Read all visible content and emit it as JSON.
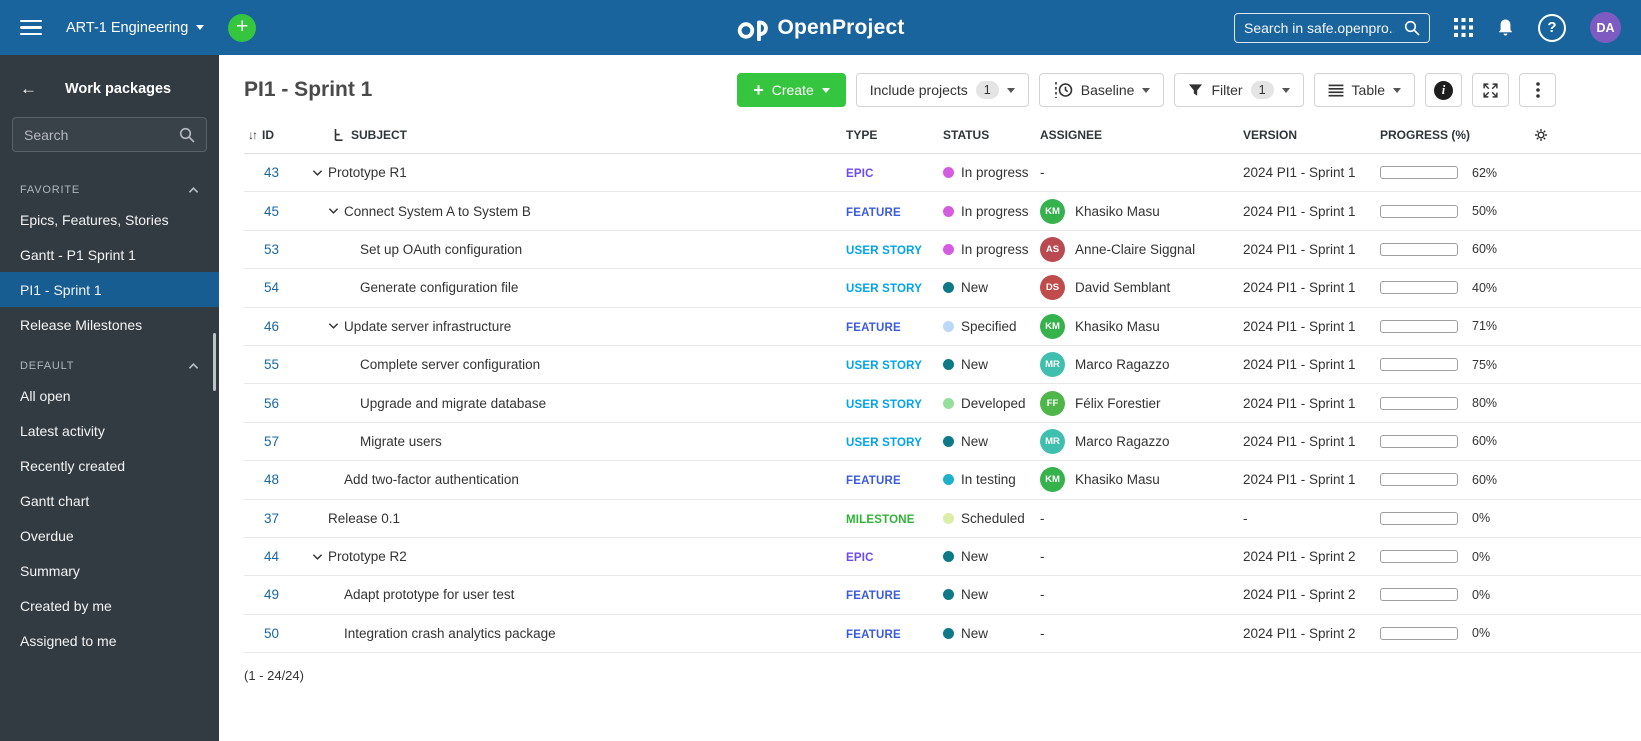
{
  "topbar": {
    "project_name": "ART-1 Engineering",
    "logo_text": "OpenProject",
    "search_placeholder": "Search in safe.openpro...",
    "avatar_initials": "DA"
  },
  "sidebar": {
    "title": "Work packages",
    "search_placeholder": "Search",
    "sections": [
      {
        "label": "FAVORITE",
        "items": [
          {
            "label": "Epics, Features, Stories",
            "selected": false
          },
          {
            "label": "Gantt - P1 Sprint 1",
            "selected": false
          },
          {
            "label": "PI1 - Sprint 1",
            "selected": true
          },
          {
            "label": "Release Milestones",
            "selected": false
          }
        ]
      },
      {
        "label": "DEFAULT",
        "items": [
          {
            "label": "All open",
            "selected": false
          },
          {
            "label": "Latest activity",
            "selected": false
          },
          {
            "label": "Recently created",
            "selected": false
          },
          {
            "label": "Gantt chart",
            "selected": false
          },
          {
            "label": "Overdue",
            "selected": false
          },
          {
            "label": "Summary",
            "selected": false
          },
          {
            "label": "Created by me",
            "selected": false
          },
          {
            "label": "Assigned to me",
            "selected": false
          }
        ]
      }
    ]
  },
  "toolbar": {
    "page_title": "PI1 - Sprint 1",
    "create_label": "Create",
    "include_projects_label": "Include projects",
    "include_projects_count": "1",
    "baseline_label": "Baseline",
    "filter_label": "Filter",
    "filter_count": "1",
    "table_label": "Table"
  },
  "table": {
    "columns": {
      "id": "ID",
      "subject": "SUBJECT",
      "type": "TYPE",
      "status": "STATUS",
      "assignee": "ASSIGNEE",
      "version": "VERSION",
      "progress": "PROGRESS (%)"
    },
    "footer": "(1 - 24/24)",
    "rows": [
      {
        "id": "43",
        "level": 0,
        "expandable": true,
        "subject": "Prototype R1",
        "type": "EPIC",
        "type_color": "#6C49F2",
        "status": "In progress",
        "status_color": "#D55CE0",
        "assignee": null,
        "version": "2024 PI1 - Sprint 1",
        "progress": 62
      },
      {
        "id": "45",
        "level": 1,
        "expandable": true,
        "subject": "Connect System A to System B",
        "type": "FEATURE",
        "type_color": "#3B5BDB",
        "status": "In progress",
        "status_color": "#D55CE0",
        "assignee": {
          "initials": "KM",
          "name": "Khasiko Masu",
          "color": "#35B24C"
        },
        "version": "2024 PI1 - Sprint 1",
        "progress": 50
      },
      {
        "id": "53",
        "level": 2,
        "expandable": false,
        "subject": "Set up OAuth configuration",
        "type": "USER STORY",
        "type_color": "#00A3EE",
        "status": "In progress",
        "status_color": "#D55CE0",
        "assignee": {
          "initials": "AS",
          "name": "Anne-Claire Siggnal",
          "color": "#BA4A52"
        },
        "version": "2024 PI1 - Sprint 1",
        "progress": 60
      },
      {
        "id": "54",
        "level": 2,
        "expandable": false,
        "subject": "Generate configuration file",
        "type": "USER STORY",
        "type_color": "#00A3EE",
        "status": "New",
        "status_color": "#0E7987",
        "assignee": {
          "initials": "DS",
          "name": "David Semblant",
          "color": "#BF4B4B"
        },
        "version": "2024 PI1 - Sprint 1",
        "progress": 40
      },
      {
        "id": "46",
        "level": 1,
        "expandable": true,
        "subject": "Update server infrastructure",
        "type": "FEATURE",
        "type_color": "#3B5BDB",
        "status": "Specified",
        "status_color": "#BBD9F7",
        "assignee": {
          "initials": "KM",
          "name": "Khasiko Masu",
          "color": "#35B24C"
        },
        "version": "2024 PI1 - Sprint 1",
        "progress": 71
      },
      {
        "id": "55",
        "level": 2,
        "expandable": false,
        "subject": "Complete server configuration",
        "type": "USER STORY",
        "type_color": "#00A3EE",
        "status": "New",
        "status_color": "#0E7987",
        "assignee": {
          "initials": "MR",
          "name": "Marco Ragazzo",
          "color": "#41BFAE"
        },
        "version": "2024 PI1 - Sprint 1",
        "progress": 75
      },
      {
        "id": "56",
        "level": 2,
        "expandable": false,
        "subject": "Upgrade and migrate database",
        "type": "USER STORY",
        "type_color": "#00A3EE",
        "status": "Developed",
        "status_color": "#95DF9D",
        "assignee": {
          "initials": "FF",
          "name": "Félix Forestier",
          "color": "#4FB64A"
        },
        "version": "2024 PI1 - Sprint 1",
        "progress": 80
      },
      {
        "id": "57",
        "level": 2,
        "expandable": false,
        "subject": "Migrate users",
        "type": "USER STORY",
        "type_color": "#00A3EE",
        "status": "New",
        "status_color": "#0E7987",
        "assignee": {
          "initials": "MR",
          "name": "Marco Ragazzo",
          "color": "#41BFAE"
        },
        "version": "2024 PI1 - Sprint 1",
        "progress": 60
      },
      {
        "id": "48",
        "level": 1,
        "expandable": false,
        "subject": "Add two-factor authentication",
        "type": "FEATURE",
        "type_color": "#3B5BDB",
        "status": "In testing",
        "status_color": "#1FB1C9",
        "assignee": {
          "initials": "KM",
          "name": "Khasiko Masu",
          "color": "#35B24C"
        },
        "version": "2024 PI1 - Sprint 1",
        "progress": 60
      },
      {
        "id": "37",
        "level": 0,
        "expandable": false,
        "subject": "Release 0.1",
        "type": "MILESTONE",
        "type_color": "#30B337",
        "status": "Scheduled",
        "status_color": "#DBEDA6",
        "assignee": null,
        "version": "-",
        "progress": 0
      },
      {
        "id": "44",
        "level": 0,
        "expandable": true,
        "subject": "Prototype R2",
        "type": "EPIC",
        "type_color": "#6C49F2",
        "status": "New",
        "status_color": "#0E7987",
        "assignee": null,
        "version": "2024 PI1 - Sprint 2",
        "progress": 0
      },
      {
        "id": "49",
        "level": 1,
        "expandable": false,
        "subject": "Adapt prototype for user test",
        "type": "FEATURE",
        "type_color": "#3B5BDB",
        "status": "New",
        "status_color": "#0E7987",
        "assignee": null,
        "version": "2024 PI1 - Sprint 2",
        "progress": 0
      },
      {
        "id": "50",
        "level": 1,
        "expandable": false,
        "subject": "Integration crash analytics package",
        "type": "FEATURE",
        "type_color": "#3B5BDB",
        "status": "New",
        "status_color": "#0E7987",
        "assignee": null,
        "version": "2024 PI1 - Sprint 2",
        "progress": 0
      }
    ]
  },
  "icons": [
    "hamburger-menu",
    "plus",
    "openproject-logo",
    "magnifier",
    "apps-grid",
    "bell",
    "help",
    "back-arrow",
    "chevron-up",
    "chevron-down",
    "sort-arrows",
    "hierarchy",
    "baseline-clock",
    "funnel",
    "table-lines",
    "info",
    "expand-fullscreen",
    "kebab-menu",
    "gear"
  ],
  "colors": {
    "topbar_bg": "#1A649E",
    "accent_green": "#35C53F",
    "sidebar_bg": "#333B42",
    "sidebar_selected_bg": "#175D92",
    "link_blue": "#1A67A3",
    "progress_fill": "#ACD7B0"
  }
}
